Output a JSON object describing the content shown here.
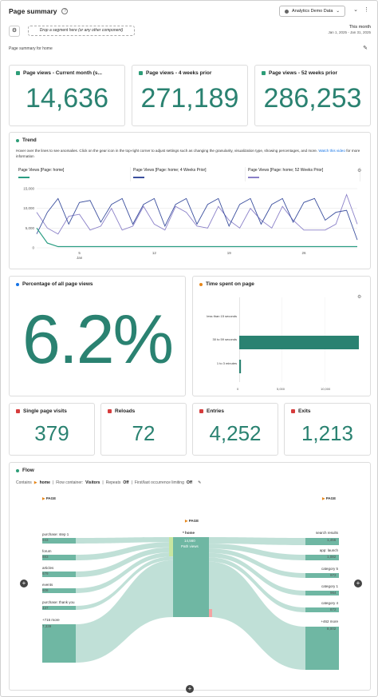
{
  "header": {
    "title": "Page summary",
    "help_icon": "?",
    "report_suite": "Analytics Demo Data"
  },
  "segment_bar": {
    "drop_text": "Drop a segment here (or any other component)",
    "date_label": "This month",
    "date_range": "Jan 1, 2025 - Jan 31, 2025"
  },
  "page_summary_label": "Page summary for home",
  "kpis": [
    {
      "title": "Page views - Current month (s...",
      "value": "14,636"
    },
    {
      "title": "Page views - 4 weeks prior",
      "value": "271,189"
    },
    {
      "title": "Page views - 52 weeks prior",
      "value": "286,253"
    }
  ],
  "trend": {
    "title": "Trend",
    "description": "Hover over the lines to see anomalies. Click on the gear icon in the top-right corner to adjust settings such as changing the granularity, visualization type, showing percentages, and more.",
    "link_text": "Watch this video",
    "description_tail": "for more information",
    "legend": [
      {
        "name": "Page Views [Page: home]",
        "color": "#2a9d82"
      },
      {
        "name": "Page Views [Page: home; 4 Weeks Prior]",
        "color": "#3b4f9e"
      },
      {
        "name": "Page Views [Page: home; 52 Weeks Prior]",
        "color": "#8a80c8"
      }
    ],
    "y_ticks": [
      "15,000",
      "10,000",
      "5,000",
      "0"
    ],
    "x_ticks": [
      "5",
      "12",
      "19",
      "26"
    ],
    "x_month": "Jan"
  },
  "chart_data": {
    "type": "line",
    "x": [
      1,
      2,
      3,
      4,
      5,
      6,
      7,
      8,
      9,
      10,
      11,
      12,
      13,
      14,
      15,
      16,
      17,
      18,
      19,
      20,
      21,
      22,
      23,
      24,
      25,
      26,
      27,
      28,
      29,
      30,
      31
    ],
    "x_label_month": "Jan",
    "ylim": [
      0,
      15000
    ],
    "y_ticks": [
      0,
      5000,
      10000,
      15000
    ],
    "x_ticks": [
      5,
      12,
      19,
      26
    ],
    "series": [
      {
        "name": "Page Views [Page: home]",
        "values": [
          5000,
          1200,
          300,
          300,
          300,
          300,
          300,
          300,
          300,
          300,
          300,
          300,
          300,
          300,
          300,
          300,
          300,
          300,
          300,
          300,
          300,
          300,
          300,
          300,
          300,
          300,
          300,
          300,
          300,
          300,
          300
        ]
      },
      {
        "name": "Page Views [Page: home; 4 Weeks Prior]",
        "values": [
          3500,
          9000,
          12500,
          6000,
          11500,
          12000,
          6500,
          11000,
          12500,
          6000,
          11000,
          12500,
          5500,
          11000,
          12500,
          6000,
          11000,
          12500,
          5500,
          11000,
          12500,
          6000,
          11000,
          12500,
          6500,
          11500,
          12500,
          7000,
          9000,
          9500,
          2000
        ]
      },
      {
        "name": "Page Views [Page: home; 52 Weeks Prior]",
        "values": [
          9000,
          5000,
          3500,
          8000,
          8500,
          4500,
          5500,
          10000,
          4500,
          5500,
          10500,
          6000,
          4500,
          10500,
          9000,
          5500,
          5000,
          10500,
          7000,
          5000,
          10000,
          7000,
          5000,
          10500,
          7000,
          4500,
          4500,
          4500,
          6000,
          13500,
          6000
        ]
      }
    ]
  },
  "percentage": {
    "title": "Percentage of all page views",
    "value": "6.2%"
  },
  "time_spent": {
    "title": "Time spent on page",
    "categories": [
      "less than 15 seconds",
      "30 to 59 seconds",
      "1 to 3 minutes"
    ],
    "values": [
      0,
      14000,
      200
    ],
    "x_ticks": [
      "0",
      "5,000",
      "10,000"
    ],
    "xmax": 14000
  },
  "small_kpis": [
    {
      "title": "Single page visits",
      "value": "379"
    },
    {
      "title": "Reloads",
      "value": "72"
    },
    {
      "title": "Entries",
      "value": "4,252"
    },
    {
      "title": "Exits",
      "value": "1,213"
    }
  ],
  "flow": {
    "title": "Flow",
    "contains_label": "Contains",
    "contains_value": "home",
    "container_label": "Flow container:",
    "container_value": "Visitors",
    "repeats_label": "Repeats",
    "repeats_value": "Off",
    "first_last_label": "First/last occurrence limiting",
    "first_last_value": "Off",
    "column_label": "PAGE",
    "center_name": "* home",
    "center_value": "14,560",
    "center_sub": "Path views",
    "left": [
      {
        "name": "purchase: step 1",
        "value": "943"
      },
      {
        "name": "forum",
        "value": "883"
      },
      {
        "name": "articles",
        "value": "679"
      },
      {
        "name": "events",
        "value": "608"
      },
      {
        "name": "purchase: thank you",
        "value": "437"
      },
      {
        "name": "+716 more",
        "value": "7,339"
      }
    ],
    "right": [
      {
        "name": "search results",
        "value": "1,456"
      },
      {
        "name": "app: launch",
        "value": "1,082"
      },
      {
        "name": "category 5",
        "value": "972"
      },
      {
        "name": "category 1",
        "value": "964"
      },
      {
        "name": "category 4",
        "value": "872"
      },
      {
        "name": "+462 more",
        "value": "8,002"
      }
    ],
    "colors": {
      "node": "#6fb7a3",
      "link": "#b9ddd3"
    }
  }
}
